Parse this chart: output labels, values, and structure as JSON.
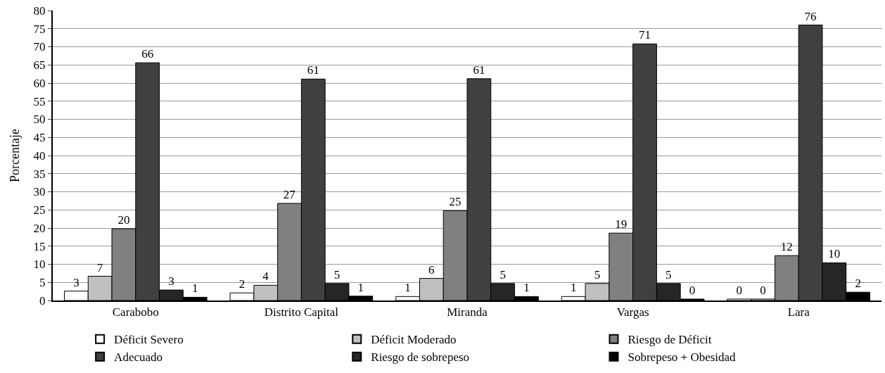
{
  "chart_data": {
    "type": "bar",
    "ylabel": "Porcentaje",
    "categories": [
      "Carabobo",
      "Distrito Capital",
      "Miranda",
      "Vargas",
      "Lara"
    ],
    "series": [
      {
        "name": "Déficit Severo",
        "color": "#ffffff",
        "values": [
          2.6,
          2.1,
          1.1,
          1.1,
          0.4
        ],
        "value_labels": [
          "3",
          "2",
          "1",
          "1",
          "0"
        ]
      },
      {
        "name": "Déficit Moderado",
        "color": "#c0c0c0",
        "values": [
          6.7,
          4.2,
          6.1,
          4.7,
          0.4
        ],
        "value_labels": [
          "7",
          "4",
          "6",
          "5",
          "0"
        ]
      },
      {
        "name": "Riesgo de Déficit",
        "color": "#808080",
        "values": [
          19.8,
          26.8,
          24.8,
          18.6,
          12.4
        ],
        "value_labels": [
          "20",
          "27",
          "25",
          "19",
          "12"
        ]
      },
      {
        "name": "Adecuado",
        "color": "#404040",
        "values": [
          65.6,
          61.1,
          61.2,
          70.8,
          76.0
        ],
        "value_labels": [
          "66",
          "61",
          "61",
          "71",
          "76"
        ]
      },
      {
        "name": "Riesgo de sobrepeso",
        "color": "#262626",
        "values": [
          2.9,
          4.7,
          4.7,
          4.7,
          10.4
        ],
        "value_labels": [
          "3",
          "5",
          "5",
          "5",
          "10"
        ]
      },
      {
        "name": "Sobrepeso + Obesidad",
        "color": "#000000",
        "values": [
          0.9,
          1.2,
          1.1,
          0.4,
          2.3
        ],
        "value_labels": [
          "1",
          "1",
          "1",
          "0",
          "2"
        ]
      }
    ],
    "ylim": [
      0,
      80
    ],
    "yticks": [
      0,
      5,
      10,
      15,
      20,
      25,
      30,
      35,
      40,
      45,
      50,
      55,
      60,
      65,
      70,
      75,
      80
    ],
    "grid": "y",
    "legend": "bottom"
  }
}
